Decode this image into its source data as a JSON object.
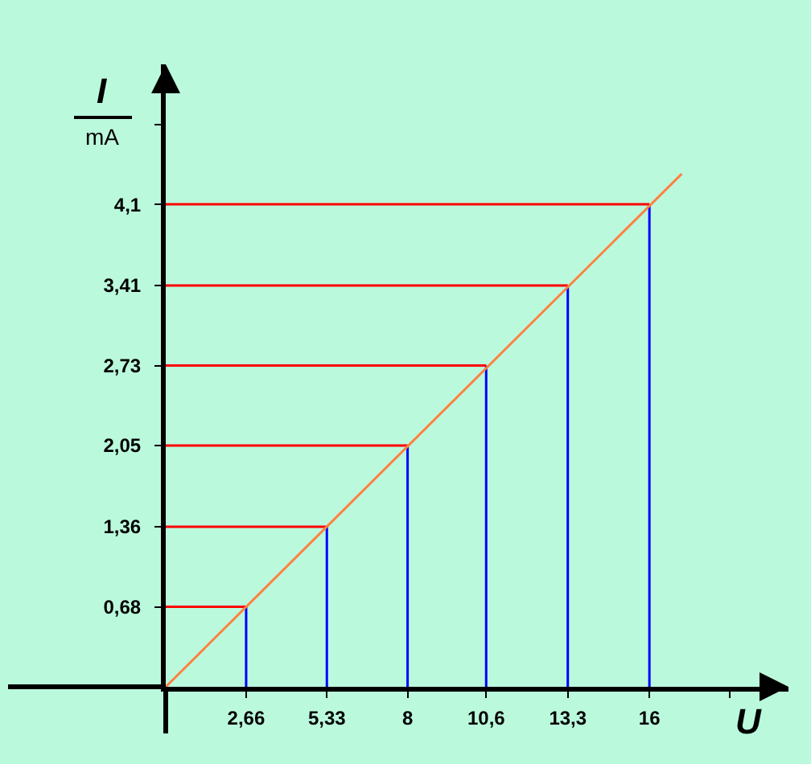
{
  "chart_data": {
    "type": "line",
    "xlabel": "U",
    "ylabel": "I",
    "annotations": [
      "mA"
    ],
    "xlim": [
      0,
      20.6
    ],
    "ylim": [
      0,
      5.29
    ],
    "xticks": [
      {
        "value": 2.66,
        "label": "2,66"
      },
      {
        "value": 5.33,
        "label": "5,33"
      },
      {
        "value": 8,
        "label": "8"
      },
      {
        "value": 10.6,
        "label": "10,6"
      },
      {
        "value": 13.3,
        "label": "13,3"
      },
      {
        "value": 16,
        "label": "16"
      },
      {
        "value": 18.66,
        "label": null
      }
    ],
    "yticks": [
      {
        "value": 0.68,
        "label": "0,68"
      },
      {
        "value": 1.36,
        "label": "1,36"
      },
      {
        "value": 2.05,
        "label": "2,05"
      },
      {
        "value": 2.73,
        "label": "2,73"
      },
      {
        "value": 3.41,
        "label": "3,41"
      },
      {
        "value": 4.1,
        "label": "4,1"
      },
      {
        "value": 4.78,
        "label": null
      }
    ],
    "grid": false,
    "marker": "none",
    "line_style": "solid",
    "series": [
      {
        "color": "#0000ff",
        "x": [
          2.66,
          2.66
        ],
        "values": [
          0,
          0.68
        ]
      },
      {
        "color": "#0000ff",
        "x": [
          5.33,
          5.33
        ],
        "values": [
          0,
          1.36
        ]
      },
      {
        "color": "#0000ff",
        "x": [
          8,
          8
        ],
        "values": [
          0,
          2.05
        ]
      },
      {
        "color": "#0000ff",
        "x": [
          10.6,
          10.6
        ],
        "values": [
          0,
          2.73
        ]
      },
      {
        "color": "#0000ff",
        "x": [
          13.3,
          13.3
        ],
        "values": [
          0,
          3.41
        ]
      },
      {
        "color": "#0000ff",
        "x": [
          16,
          16
        ],
        "values": [
          0,
          4.1
        ]
      },
      {
        "color": "#ff0000",
        "x": [
          0,
          2.66
        ],
        "values": [
          0.68,
          0.68
        ]
      },
      {
        "color": "#ff0000",
        "x": [
          0,
          5.33
        ],
        "values": [
          1.36,
          1.36
        ]
      },
      {
        "color": "#ff0000",
        "x": [
          0,
          8
        ],
        "values": [
          2.05,
          2.05
        ]
      },
      {
        "color": "#ff0000",
        "x": [
          0,
          10.6
        ],
        "values": [
          2.73,
          2.73
        ]
      },
      {
        "color": "#ff0000",
        "x": [
          0,
          13.3
        ],
        "values": [
          3.41,
          3.41
        ]
      },
      {
        "color": "#ff0000",
        "x": [
          0,
          16
        ],
        "values": [
          4.1,
          4.1
        ]
      },
      {
        "color": "#ff8040",
        "x": [
          0,
          17.07
        ],
        "values": [
          0,
          4.36
        ]
      }
    ]
  }
}
